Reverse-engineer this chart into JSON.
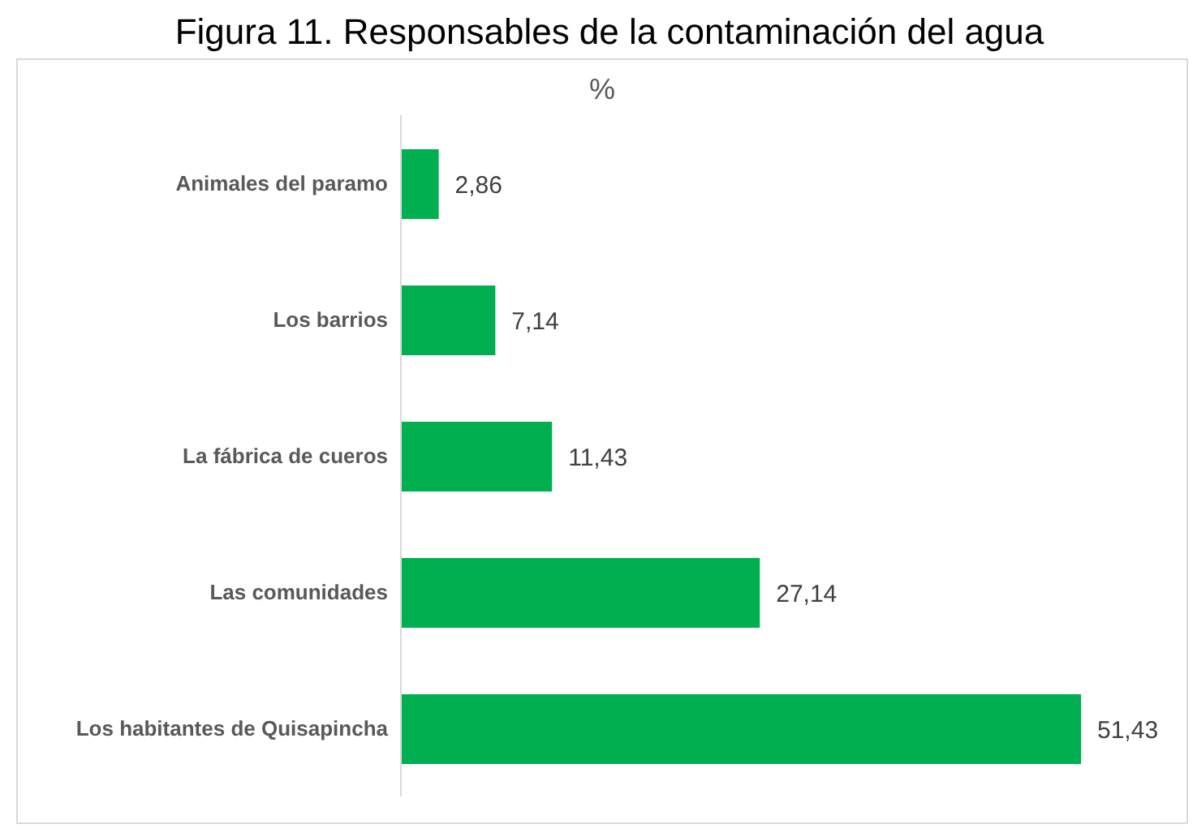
{
  "chart_data": {
    "type": "bar",
    "orientation": "horizontal",
    "title": "Figura 11. Responsables de la contaminación del agua",
    "subtitle": "%",
    "categories": [
      "Animales del paramo",
      "Los barrios",
      "La fábrica de cueros",
      "Las comunidades",
      "Los habitantes de Quisapincha"
    ],
    "values": [
      2.86,
      7.14,
      11.43,
      27.14,
      51.43
    ],
    "value_labels": [
      "2,86",
      "7,14",
      "11,43",
      "27,14",
      "51,43"
    ],
    "color": "#00b050",
    "tick_labels": "y"
  }
}
